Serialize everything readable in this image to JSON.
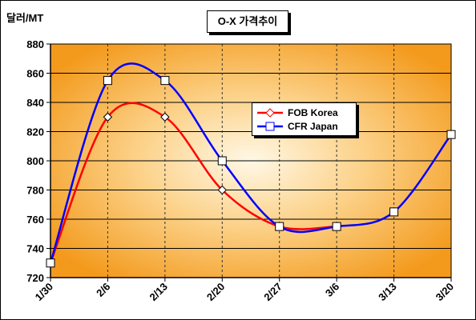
{
  "y_unit_label": "달러/MT",
  "chart_data": {
    "type": "line",
    "title": "O-X 가격추이",
    "xlabel": "",
    "ylabel": "달러/MT",
    "categories": [
      "1/30",
      "2/6",
      "2/13",
      "2/20",
      "2/27",
      "3/6",
      "3/13",
      "3/20"
    ],
    "ylim": [
      720,
      880
    ],
    "yticks": [
      720,
      740,
      760,
      780,
      800,
      820,
      840,
      860,
      880
    ],
    "grid": true,
    "legend_position": "top-right",
    "series": [
      {
        "name": "FOB Korea",
        "color": "#ff0000",
        "marker": "diamond",
        "x": [
          0,
          1,
          2,
          3,
          4,
          5
        ],
        "values": [
          730,
          830,
          830,
          780,
          755,
          755
        ]
      },
      {
        "name": "CFR Japan",
        "color": "#0000ff",
        "marker": "square",
        "x": [
          0,
          1,
          2,
          3,
          4,
          5,
          6,
          7
        ],
        "values": [
          730,
          855,
          855,
          800,
          755,
          755,
          765,
          818
        ]
      }
    ]
  }
}
